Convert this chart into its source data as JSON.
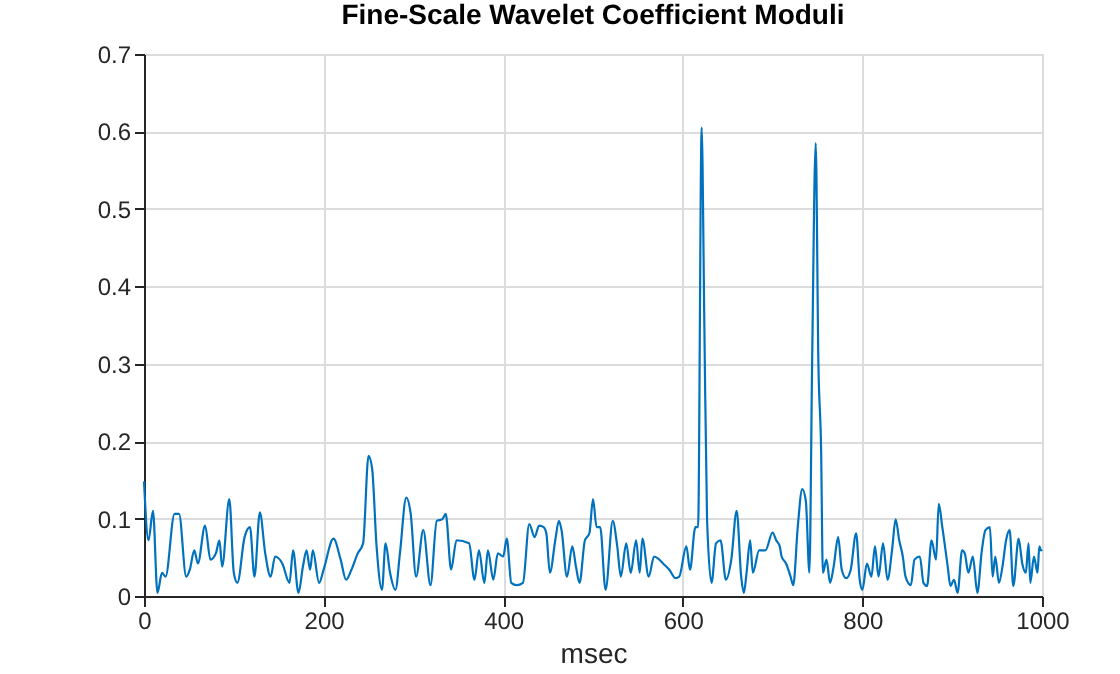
{
  "chart_data": {
    "type": "line",
    "title": "Fine-Scale Wavelet Coefficient Moduli",
    "xlabel": "msec",
    "x": [
      0,
      5,
      10,
      15,
      20,
      24,
      34,
      39,
      47,
      51,
      56,
      60,
      68,
      74,
      80,
      84,
      87,
      95,
      100,
      104,
      112,
      118,
      123,
      129,
      135,
      141,
      146,
      154,
      162,
      166,
      172,
      177,
      181,
      185,
      188,
      195,
      200,
      211,
      219,
      225,
      231,
      238,
      244,
      250,
      254,
      259,
      265,
      269,
      274,
      280,
      285,
      292,
      297,
      303,
      311,
      319,
      326,
      332,
      336,
      342,
      348,
      362,
      368,
      373,
      379,
      383,
      389,
      394,
      400,
      404,
      409,
      415,
      422,
      429,
      435,
      440,
      445,
      448,
      452,
      458,
      462,
      465,
      471,
      477,
      481,
      485,
      491,
      496,
      500,
      504,
      508,
      514,
      522,
      527,
      531,
      537,
      542,
      548,
      552,
      555,
      562,
      568,
      573,
      578,
      585,
      592,
      596,
      604,
      608,
      614,
      617,
      621,
      624,
      627,
      632,
      637,
      642,
      648,
      654,
      660,
      665,
      668,
      671,
      675,
      678,
      685,
      692,
      700,
      704,
      708,
      710,
      715,
      720,
      723,
      728,
      733,
      737,
      741,
      744,
      748,
      751,
      754,
      756,
      760,
      764,
      768,
      773,
      777,
      782,
      787,
      793,
      797,
      800,
      805,
      810,
      814,
      818,
      823,
      828,
      833,
      837,
      841,
      845,
      848,
      854,
      858,
      864,
      868,
      872,
      877,
      882,
      885,
      889,
      895,
      898,
      902,
      906,
      911,
      914,
      918,
      923,
      928,
      933,
      937,
      942,
      945,
      948,
      952,
      956,
      960,
      964,
      968,
      974,
      978,
      982,
      985,
      987,
      991,
      995,
      997,
      999,
      1000
    ],
    "series": [
      {
        "color": "#0072bd",
        "values": [
          0.148,
          0.072,
          0.11,
          0.004,
          0.03,
          0.025,
          0.106,
          0.106,
          0.025,
          0.034,
          0.059,
          0.042,
          0.091,
          0.047,
          0.055,
          0.072,
          0.038,
          0.125,
          0.03,
          0.017,
          0.076,
          0.089,
          0.025,
          0.108,
          0.055,
          0.025,
          0.051,
          0.042,
          0.017,
          0.059,
          0.004,
          0.038,
          0.059,
          0.034,
          0.059,
          0.017,
          0.034,
          0.074,
          0.047,
          0.021,
          0.034,
          0.055,
          0.068,
          0.181,
          0.165,
          0.064,
          0.008,
          0.068,
          0.03,
          0.008,
          0.055,
          0.127,
          0.106,
          0.025,
          0.085,
          0.014,
          0.097,
          0.099,
          0.106,
          0.034,
          0.072,
          0.068,
          0.021,
          0.059,
          0.017,
          0.059,
          0.021,
          0.055,
          0.051,
          0.074,
          0.017,
          0.014,
          0.017,
          0.093,
          0.076,
          0.091,
          0.089,
          0.081,
          0.03,
          0.072,
          0.097,
          0.085,
          0.025,
          0.064,
          0.038,
          0.017,
          0.072,
          0.081,
          0.125,
          0.089,
          0.089,
          0.008,
          0.097,
          0.064,
          0.025,
          0.068,
          0.03,
          0.072,
          0.03,
          0.074,
          0.025,
          0.051,
          0.048,
          0.042,
          0.034,
          0.023,
          0.025,
          0.064,
          0.034,
          0.089,
          0.089,
          0.605,
          0.35,
          0.1,
          0.017,
          0.068,
          0.072,
          0.021,
          0.047,
          0.11,
          0.025,
          0.004,
          0.03,
          0.072,
          0.03,
          0.059,
          0.059,
          0.082,
          0.072,
          0.064,
          0.051,
          0.042,
          0.025,
          0.014,
          0.089,
          0.138,
          0.123,
          0.03,
          0.3,
          0.585,
          0.3,
          0.19,
          0.03,
          0.047,
          0.017,
          0.038,
          0.076,
          0.034,
          0.023,
          0.034,
          0.081,
          0.021,
          0.008,
          0.042,
          0.025,
          0.064,
          0.025,
          0.068,
          0.021,
          0.059,
          0.099,
          0.072,
          0.051,
          0.025,
          0.014,
          0.047,
          0.051,
          0.017,
          0.013,
          0.072,
          0.047,
          0.119,
          0.089,
          0.038,
          0.013,
          0.021,
          0.004,
          0.059,
          0.055,
          0.03,
          0.051,
          0.004,
          0.059,
          0.085,
          0.089,
          0.025,
          0.051,
          0.017,
          0.038,
          0.072,
          0.085,
          0.013,
          0.074,
          0.042,
          0.03,
          0.068,
          0.017,
          0.051,
          0.03,
          0.064,
          0.059,
          0.06
        ]
      }
    ],
    "xlim": [
      0,
      1000
    ],
    "ylim": [
      0,
      0.7
    ],
    "xticks": [
      0,
      200,
      400,
      600,
      800,
      1000
    ],
    "yticks": [
      0,
      0.1,
      0.2,
      0.3,
      0.4,
      0.5,
      0.6,
      0.7
    ],
    "grid": true
  }
}
